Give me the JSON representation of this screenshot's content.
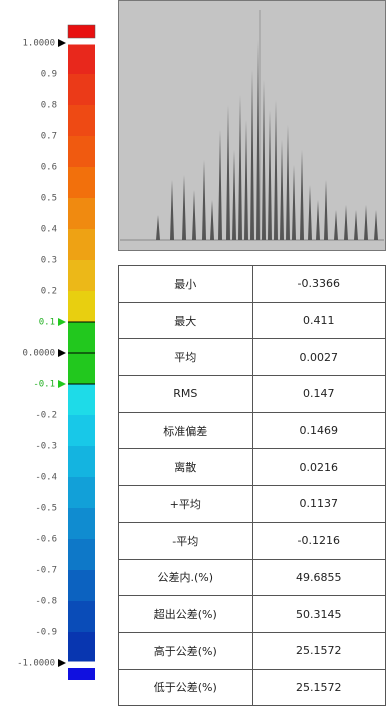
{
  "scale": {
    "ticks": [
      {
        "value": 1,
        "label": "1.0000"
      },
      0.9,
      0.8,
      0.7,
      0.6,
      0.5,
      0.4,
      0.3,
      0.2,
      0.1,
      {
        "value": 0,
        "label": "0.0000"
      },
      -0.1,
      -0.2,
      -0.3,
      -0.4,
      -0.5,
      -0.6,
      -0.7,
      -0.8,
      -0.9,
      {
        "value": -1,
        "label": "-1.0000"
      }
    ],
    "tolerance": [
      -0.1,
      0.1
    ],
    "colors": [
      "#e8281c",
      "#eb3a18",
      "#ee4a14",
      "#f05a10",
      "#f2700c",
      "#f08a10",
      "#eea214",
      "#ecb818",
      "#e8cf10",
      "#22c81e",
      "#22c81e",
      "#1edbe8",
      "#18c8e8",
      "#14b4e0",
      "#12a0d8",
      "#108cd0",
      "#0e78c8",
      "#0c62c0",
      "#0a4cb8",
      "#0836b0"
    ],
    "over_color": "#e81010",
    "under_color": "#1010e0"
  },
  "stats": {
    "rows": [
      [
        "最小",
        "-0.3366"
      ],
      [
        "最大",
        "0.411"
      ],
      [
        "平均",
        "0.0027"
      ],
      [
        "RMS",
        "0.147"
      ],
      [
        "标准偏差",
        "0.1469"
      ],
      [
        "离散",
        "0.0216"
      ],
      [
        "+平均",
        "0.1137"
      ],
      [
        "-平均",
        "-0.1216"
      ],
      [
        "公差内.(%)",
        "49.6855"
      ],
      [
        "超出公差(%)",
        "50.3145"
      ],
      [
        "高于公差(%)",
        "25.1572"
      ],
      [
        "低于公差(%)",
        "25.1572"
      ]
    ]
  }
}
